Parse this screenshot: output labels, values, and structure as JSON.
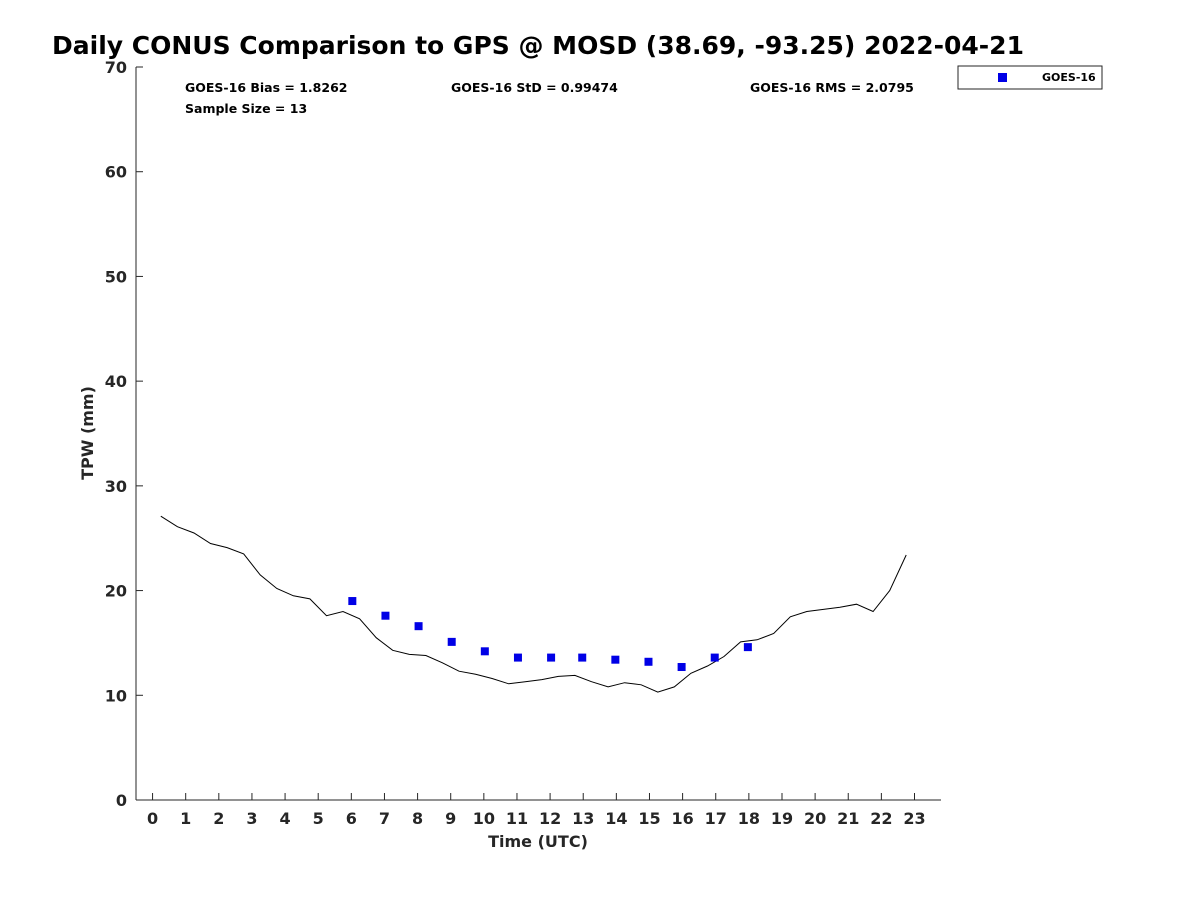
{
  "chart_data": {
    "type": "scatter",
    "title": "Daily CONUS Comparison to GPS @ MOSD (38.69, -93.25) 2022-04-21",
    "xlabel": "Time (UTC)",
    "ylabel": "TPW (mm)",
    "xlim": [
      -0.5,
      23.8
    ],
    "ylim": [
      0,
      70
    ],
    "xticks": [
      "0",
      "1",
      "2",
      "3",
      "4",
      "5",
      "6",
      "7",
      "8",
      "9",
      "10",
      "11",
      "12",
      "13",
      "14",
      "15",
      "16",
      "17",
      "18",
      "19",
      "20",
      "21",
      "22",
      "23"
    ],
    "yticks": [
      "0",
      "10",
      "20",
      "30",
      "40",
      "50",
      "60",
      "70"
    ],
    "grid": false,
    "legend_position": "top-right (outside)",
    "stats": {
      "bias": "GOES-16 Bias = 1.8262",
      "std": "GOES-16 StD = 0.99474",
      "rms": "GOES-16 RMS = 2.0795",
      "sample": "Sample Size = 13"
    },
    "series": [
      {
        "name": "GOES-16",
        "kind": "scatter",
        "marker": "square",
        "color": "#0000e6",
        "x": [
          6.03,
          7.03,
          8.03,
          9.03,
          10.03,
          11.03,
          12.03,
          12.97,
          13.97,
          14.97,
          15.97,
          16.97,
          17.97
        ],
        "y": [
          19.0,
          17.6,
          16.6,
          15.1,
          14.2,
          13.6,
          13.6,
          13.6,
          13.4,
          13.2,
          12.7,
          13.6,
          14.6
        ]
      },
      {
        "kind": "line",
        "color": "#000000",
        "x": [
          0.25,
          0.75,
          1.25,
          1.75,
          2.25,
          2.75,
          3.25,
          3.75,
          4.25,
          4.75,
          5.25,
          5.75,
          6.25,
          6.75,
          7.25,
          7.75,
          8.25,
          8.75,
          9.25,
          9.75,
          10.25,
          10.75,
          11.25,
          11.75,
          12.25,
          12.75,
          13.25,
          13.75,
          14.25,
          14.75,
          15.25,
          15.75,
          16.25,
          16.75,
          17.25,
          17.75,
          18.25,
          18.75,
          19.25,
          19.75,
          20.25,
          20.75,
          21.25,
          21.75,
          22.25,
          22.75
        ],
        "y": [
          27.1,
          26.1,
          25.5,
          24.5,
          24.1,
          23.5,
          21.5,
          20.2,
          19.5,
          19.2,
          17.6,
          18.0,
          17.3,
          15.5,
          14.3,
          13.9,
          13.8,
          13.1,
          12.3,
          12.0,
          11.6,
          11.1,
          11.3,
          11.5,
          11.8,
          11.9,
          11.3,
          10.8,
          11.2,
          11.0,
          10.3,
          10.8,
          12.1,
          12.8,
          13.7,
          15.1,
          15.3,
          15.9,
          17.5,
          18.0,
          18.2,
          18.4,
          18.7,
          18.0,
          20.0,
          23.4
        ]
      }
    ]
  }
}
